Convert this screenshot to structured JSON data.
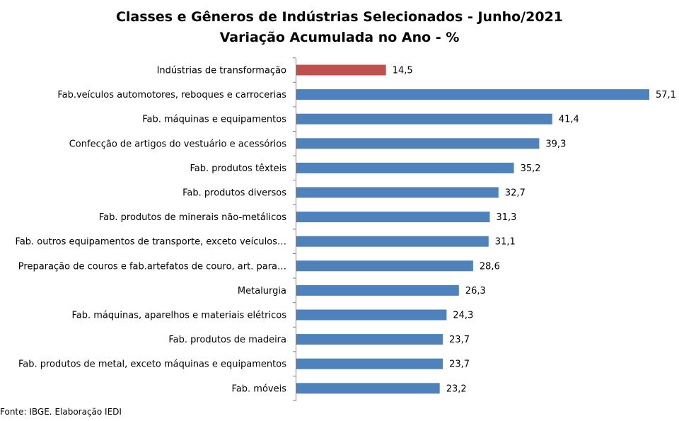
{
  "chart_data": {
    "type": "bar",
    "orientation": "horizontal",
    "title": "Classes e Gêneros de Indústrias Selecionados - Junho/2021",
    "subtitle": "Variação Acumulada no Ano - %",
    "categories": [
      "Indústrias de transformação",
      "Fab.veículos automotores, reboques e carrocerias",
      "Fab. máquinas e equipamentos",
      "Confecção de artigos do vestuário e acessórios",
      "Fab. produtos têxteis",
      "Fab. produtos diversos",
      "Fab. produtos de minerais não-metálicos",
      "Fab. outros equipamentos de transporte, exceto veículos…",
      "Preparação de couros e fab.artefatos de couro, art. para…",
      "Metalurgia",
      "Fab. máquinas, aparelhos e materiais elétricos",
      "Fab. produtos de madeira",
      "Fab. produtos de metal, exceto máquinas e equipamentos",
      "Fab. móveis"
    ],
    "values": [
      14.5,
      57.1,
      41.4,
      39.3,
      35.2,
      32.7,
      31.3,
      31.1,
      28.6,
      26.3,
      24.3,
      23.7,
      23.7,
      23.2
    ],
    "value_labels": [
      "14,5",
      "57,1",
      "41,4",
      "39,3",
      "35,2",
      "32,7",
      "31,3",
      "31,1",
      "28,6",
      "26,3",
      "24,3",
      "23,7",
      "23,7",
      "23,2"
    ],
    "xlim": [
      0,
      57.1
    ],
    "highlight_index": 0,
    "colors": {
      "highlight": "#C0504D",
      "default": "#4F81BD",
      "axis": "#868686"
    },
    "grid": false,
    "legend": "none"
  },
  "source": "Fonte: IBGE. Elaboração IEDI"
}
